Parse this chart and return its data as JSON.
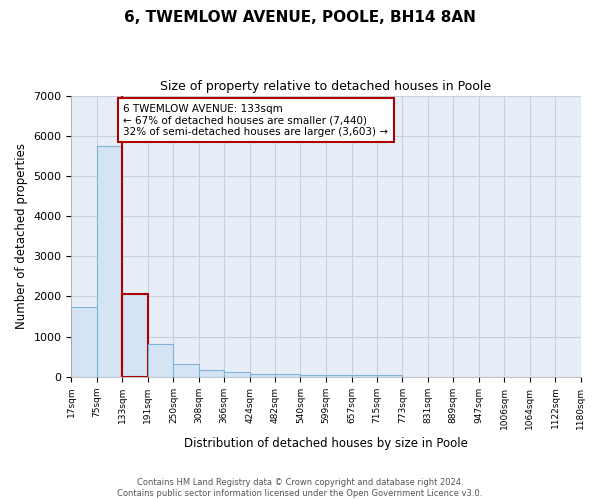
{
  "title1": "6, TWEMLOW AVENUE, POOLE, BH14 8AN",
  "title2": "Size of property relative to detached houses in Poole",
  "xlabel": "Distribution of detached houses by size in Poole",
  "ylabel": "Number of detached properties",
  "bin_edges": [
    17,
    75,
    133,
    191,
    250,
    308,
    366,
    424,
    482,
    540,
    599,
    657,
    715,
    773,
    831,
    889,
    947,
    1006,
    1064,
    1122,
    1180
  ],
  "bar_heights": [
    1750,
    5750,
    2050,
    825,
    325,
    175,
    125,
    80,
    70,
    55,
    50,
    50,
    55,
    0,
    0,
    0,
    0,
    0,
    0,
    0
  ],
  "bar_color": "#d4e4f5",
  "bar_edge_color": "#7eb5d6",
  "highlight_index": 2,
  "highlight_edge_color": "#aa0000",
  "vline_x": 133,
  "vline_color": "#aa0000",
  "annotation_text": "6 TWEMLOW AVENUE: 133sqm\n← 67% of detached houses are smaller (7,440)\n32% of semi-detached houses are larger (3,603) →",
  "annotation_box_color": "#ffffff",
  "annotation_edge_color": "#aa0000",
  "ylim": [
    0,
    7000
  ],
  "yticks": [
    0,
    1000,
    2000,
    3000,
    4000,
    5000,
    6000,
    7000
  ],
  "background_color": "#e8eef8",
  "grid_color": "#c8d0dc",
  "footer_line1": "Contains HM Land Registry data © Crown copyright and database right 2024.",
  "footer_line2": "Contains public sector information licensed under the Open Government Licence v3.0."
}
